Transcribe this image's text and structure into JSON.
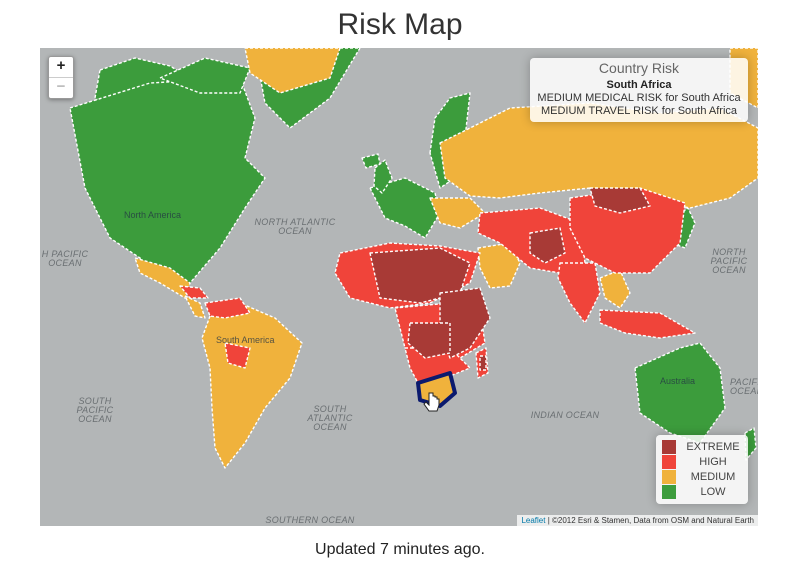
{
  "title": "Risk Map",
  "footer": "Updated 7 minutes ago.",
  "zoom": {
    "in": "+",
    "out": "−"
  },
  "info": {
    "heading": "Country Risk",
    "country": "South Africa",
    "line1": "MEDIUM MEDICAL RISK for South Africa",
    "line2": "MEDIUM TRAVEL RISK for South Africa"
  },
  "legend": [
    {
      "label": "EXTREME",
      "color": "#a83a36"
    },
    {
      "label": "HIGH",
      "color": "#f0443a"
    },
    {
      "label": "MEDIUM",
      "color": "#f0b23c"
    },
    {
      "label": "LOW",
      "color": "#3c9c3c"
    }
  ],
  "attribution": {
    "leaflet": "Leaflet",
    "rest": " | ©2012 Esri & Stamen, Data from OSM and Natural Earth"
  },
  "labels": {
    "north_atlantic": "NORTH ATLANTIC OCEAN",
    "north_pacific_left": "H PACIFIC OCEAN",
    "north_pacific_right": "NORTH PACIFIC OCEAN",
    "south_pacific": "SOUTH PACIFIC OCEAN",
    "south_atlantic": "SOUTH ATLANTIC OCEAN",
    "indian": "INDIAN OCEAN",
    "southern": "SOUTHERN OCEAN",
    "south_pacific_right": "PACIFIC OCEAN",
    "north_america": "North America",
    "south_america": "South America",
    "australia": "Australia"
  }
}
